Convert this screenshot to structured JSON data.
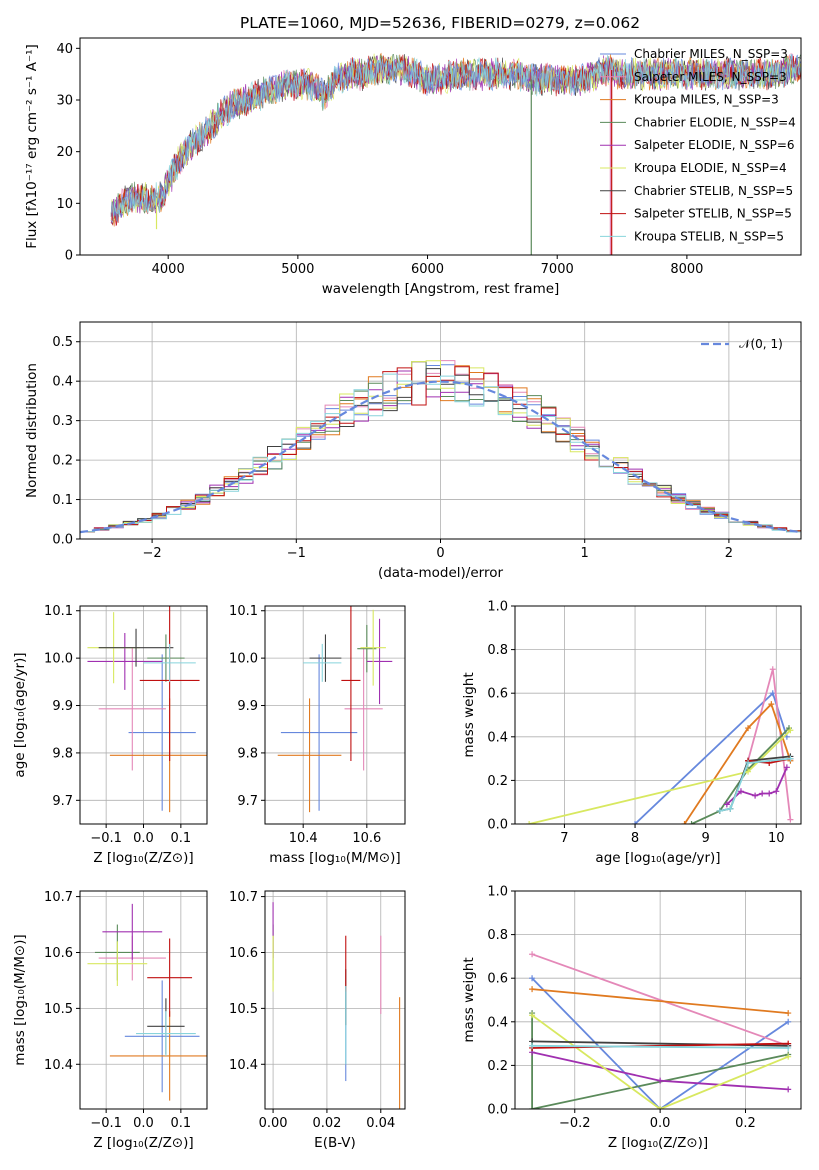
{
  "title": "PLATE=1060, MJD=52636, FIBERID=0279, z=0.062",
  "colors": [
    "#6688dd",
    "#e488b8",
    "#e07a20",
    "#5a8a5a",
    "#a030b0",
    "#d8e860",
    "#404040",
    "#c01010",
    "#88d4dc"
  ],
  "chart_data": [
    {
      "id": "spectrum",
      "type": "line",
      "xlabel": "wavelength [Angstrom, rest frame]",
      "ylabel": "Flux [fλ10⁻¹⁷ erg cm⁻² s⁻¹ A⁻¹]",
      "xlim": [
        3320,
        8880
      ],
      "ylim": [
        0,
        42
      ],
      "xticks": [
        "4000",
        "5000",
        "6000",
        "7000",
        "8000"
      ],
      "yticks": [
        "0",
        "10",
        "20",
        "30",
        "40"
      ],
      "grid": false,
      "legend_position": "top-right",
      "legend": [
        "Chabrier MILES, N_SSP=3",
        "Salpeter MILES, N_SSP=3",
        "Kroupa MILES, N_SSP=3",
        "Chabrier ELODIE, N_SSP=4",
        "Salpeter ELODIE, N_SSP=6",
        "Kroupa ELODIE, N_SSP=4",
        "Chabrier STELIB, N_SSP=5",
        "Salpeter STELIB, N_SSP=5",
        "Kroupa STELIB, N_SSP=5"
      ],
      "continuum": [
        [
          3560,
          8
        ],
        [
          3700,
          11
        ],
        [
          3800,
          11
        ],
        [
          3900,
          11
        ],
        [
          3950,
          11
        ],
        [
          4000,
          14
        ],
        [
          4100,
          19
        ],
        [
          4200,
          22
        ],
        [
          4300,
          24
        ],
        [
          4400,
          27
        ],
        [
          4500,
          29
        ],
        [
          4600,
          30
        ],
        [
          4700,
          31
        ],
        [
          4800,
          32
        ],
        [
          4900,
          33
        ],
        [
          5000,
          33
        ],
        [
          5100,
          33
        ],
        [
          5200,
          31
        ],
        [
          5300,
          34
        ],
        [
          5400,
          35
        ],
        [
          5500,
          35
        ],
        [
          5600,
          36
        ],
        [
          5700,
          36
        ],
        [
          5800,
          36
        ],
        [
          5900,
          35
        ],
        [
          6000,
          34
        ],
        [
          6100,
          34
        ],
        [
          6200,
          35
        ],
        [
          6300,
          35
        ],
        [
          6400,
          35
        ],
        [
          6500,
          35
        ],
        [
          6600,
          35
        ],
        [
          6700,
          35
        ],
        [
          6800,
          34
        ],
        [
          6900,
          34
        ],
        [
          7000,
          34
        ],
        [
          7100,
          34
        ],
        [
          7200,
          34
        ],
        [
          7300,
          35
        ],
        [
          7400,
          36
        ],
        [
          7500,
          35
        ],
        [
          7600,
          35
        ],
        [
          7700,
          35
        ],
        [
          7800,
          35
        ],
        [
          7900,
          35
        ],
        [
          8000,
          35
        ],
        [
          8100,
          35
        ],
        [
          8200,
          35
        ],
        [
          8300,
          35
        ],
        [
          8400,
          35
        ],
        [
          8500,
          35
        ],
        [
          8600,
          35
        ],
        [
          8700,
          35
        ],
        [
          8800,
          36
        ]
      ]
    },
    {
      "id": "residuals",
      "type": "bar",
      "xlabel": "(data-model)/error",
      "ylabel": "Normed distribution",
      "xlim": [
        -2.5,
        2.5
      ],
      "ylim": [
        0,
        0.55
      ],
      "xticks": [
        "−2",
        "−1",
        "0",
        "1",
        "2"
      ],
      "yticks": [
        "0.0",
        "0.1",
        "0.2",
        "0.3",
        "0.4",
        "0.5"
      ],
      "grid": true,
      "legend_position": "top-right",
      "legend": [
        "𝒩(0, 1)"
      ],
      "bin_width": 0.1
    },
    {
      "id": "age-vs-Z",
      "type": "scatter",
      "xlabel": "Z [log₁₀(Z/Z⊙)]",
      "ylabel": "age  [log₁₀(age/yr)]",
      "xlim": [
        -0.17,
        0.17
      ],
      "ylim": [
        9.65,
        10.11
      ],
      "xticks": [
        "−0.1",
        "0.0",
        "0.1"
      ],
      "yticks": [
        "9.7",
        "9.8",
        "9.9",
        "10.0",
        "10.1"
      ],
      "grid": true,
      "points": [
        {
          "x": 0.05,
          "y": 9.843,
          "xerr": 0.09,
          "yerr": 0.165,
          "color": "#6688dd"
        },
        {
          "x": -0.03,
          "y": 9.893,
          "xerr": 0.09,
          "yerr": 0.13,
          "color": "#e488b8"
        },
        {
          "x": 0.07,
          "y": 9.795,
          "xerr": 0.16,
          "yerr": 0.12,
          "color": "#e07a20"
        },
        {
          "x": 0.06,
          "y": 10.0,
          "xerr": 0.05,
          "yerr": 0.05,
          "color": "#5a8a5a"
        },
        {
          "x": -0.05,
          "y": 9.993,
          "xerr": 0.1,
          "yerr": 0.06,
          "color": "#a030b0"
        },
        {
          "x": -0.08,
          "y": 10.022,
          "xerr": 0.07,
          "yerr": 0.075,
          "color": "#d8e860"
        },
        {
          "x": -0.02,
          "y": 10.022,
          "xerr": 0.1,
          "yerr": 0.04,
          "color": "#404040"
        },
        {
          "x": 0.07,
          "y": 9.953,
          "xerr": 0.08,
          "yerr": 0.17,
          "color": "#c01010"
        },
        {
          "x": 0.07,
          "y": 9.99,
          "xerr": 0.07,
          "yerr": 0.04,
          "color": "#88d4dc"
        }
      ]
    },
    {
      "id": "age-vs-mass",
      "type": "scatter",
      "xlabel": "mass [log₁₀(M/M⊙)]",
      "ylabel": "",
      "xlim": [
        10.28,
        10.72
      ],
      "ylim": [
        9.65,
        10.11
      ],
      "xticks": [
        "10.4",
        "10.6"
      ],
      "yticks": [
        "9.7",
        "9.8",
        "9.9",
        "10.0",
        "10.1"
      ],
      "grid": true,
      "points": [
        {
          "x": 10.45,
          "y": 9.843,
          "xerr": 0.12,
          "yerr": 0.165,
          "color": "#6688dd"
        },
        {
          "x": 10.59,
          "y": 9.893,
          "xerr": 0.06,
          "yerr": 0.13,
          "color": "#e488b8"
        },
        {
          "x": 10.42,
          "y": 9.795,
          "xerr": 0.1,
          "yerr": 0.12,
          "color": "#e07a20"
        },
        {
          "x": 10.6,
          "y": 10.02,
          "xerr": 0.03,
          "yerr": 0.05,
          "color": "#5a8a5a"
        },
        {
          "x": 10.64,
          "y": 9.993,
          "xerr": 0.04,
          "yerr": 0.09,
          "color": "#a030b0"
        },
        {
          "x": 10.62,
          "y": 10.022,
          "xerr": 0.04,
          "yerr": 0.08,
          "color": "#d8e860"
        },
        {
          "x": 10.47,
          "y": 10.0,
          "xerr": 0.05,
          "yerr": 0.05,
          "color": "#404040"
        },
        {
          "x": 10.55,
          "y": 9.953,
          "xerr": 0.03,
          "yerr": 0.17,
          "color": "#c01010"
        },
        {
          "x": 10.46,
          "y": 9.99,
          "xerr": 0.06,
          "yerr": 0.04,
          "color": "#88d4dc"
        }
      ]
    },
    {
      "id": "weight-vs-age",
      "type": "line",
      "xlabel": "age  [log₁₀(age/yr)]",
      "ylabel": "mass weight",
      "xlim": [
        6.3,
        10.35
      ],
      "ylim": [
        0,
        1
      ],
      "xticks": [
        "7",
        "8",
        "9",
        "10"
      ],
      "yticks": [
        "0.0",
        "0.2",
        "0.4",
        "0.6",
        "0.8",
        "1.0"
      ],
      "grid": true,
      "series": [
        {
          "color": "#6688dd",
          "x": [
            8.0,
            9.95,
            10.15
          ],
          "y": [
            0.0,
            0.6,
            0.4
          ]
        },
        {
          "color": "#e488b8",
          "x": [
            9.6,
            9.95,
            10.2
          ],
          "y": [
            0.29,
            0.71,
            0.02
          ]
        },
        {
          "color": "#e07a20",
          "x": [
            8.7,
            9.6,
            9.93,
            10.2
          ],
          "y": [
            0.0,
            0.44,
            0.55,
            0.29
          ]
        },
        {
          "color": "#5a8a5a",
          "x": [
            8.8,
            9.2,
            9.6,
            10.18
          ],
          "y": [
            0.0,
            0.06,
            0.25,
            0.44
          ]
        },
        {
          "color": "#a030b0",
          "x": [
            9.3,
            9.5,
            9.7,
            9.8,
            9.9,
            10.0,
            10.15
          ],
          "y": [
            0.09,
            0.15,
            0.13,
            0.14,
            0.14,
            0.15,
            0.26
          ]
        },
        {
          "color": "#d8e860",
          "x": [
            6.5,
            9.6,
            10.2
          ],
          "y": [
            0.0,
            0.24,
            0.43
          ]
        },
        {
          "color": "#404040",
          "x": [
            9.2,
            9.35,
            9.6,
            10.2
          ],
          "y": [
            0.06,
            0.07,
            0.29,
            0.31
          ]
        },
        {
          "color": "#c01010",
          "x": [
            9.6,
            9.9,
            10.2
          ],
          "y": [
            0.29,
            0.28,
            0.3
          ]
        },
        {
          "color": "#88d4dc",
          "x": [
            9.2,
            9.35,
            9.6,
            10.2
          ],
          "y": [
            0.06,
            0.07,
            0.28,
            0.3
          ]
        }
      ]
    },
    {
      "id": "mass-vs-Z",
      "type": "scatter",
      "xlabel": "Z [log₁₀(Z/Z⊙)]",
      "ylabel": "mass [log₁₀(M/M⊙)]",
      "xlim": [
        -0.17,
        0.17
      ],
      "ylim": [
        10.32,
        10.71
      ],
      "xticks": [
        "−0.1",
        "0.0",
        "0.1"
      ],
      "yticks": [
        "10.4",
        "10.5",
        "10.6",
        "10.7"
      ],
      "grid": true,
      "points": [
        {
          "x": 0.05,
          "y": 10.45,
          "xerr": 0.1,
          "yerr": 0.1,
          "color": "#6688dd"
        },
        {
          "x": -0.03,
          "y": 10.59,
          "xerr": 0.09,
          "yerr": 0.04,
          "color": "#e488b8"
        },
        {
          "x": 0.07,
          "y": 10.415,
          "xerr": 0.16,
          "yerr": 0.08,
          "color": "#e07a20"
        },
        {
          "x": -0.07,
          "y": 10.6,
          "xerr": 0.06,
          "yerr": 0.05,
          "color": "#5a8a5a"
        },
        {
          "x": -0.03,
          "y": 10.637,
          "xerr": 0.08,
          "yerr": 0.05,
          "color": "#a030b0"
        },
        {
          "x": -0.07,
          "y": 10.58,
          "xerr": 0.08,
          "yerr": 0.04,
          "color": "#d8e860"
        },
        {
          "x": 0.06,
          "y": 10.468,
          "xerr": 0.05,
          "yerr": 0.05,
          "color": "#404040"
        },
        {
          "x": 0.07,
          "y": 10.555,
          "xerr": 0.06,
          "yerr": 0.07,
          "color": "#c01010"
        },
        {
          "x": 0.06,
          "y": 10.455,
          "xerr": 0.08,
          "yerr": 0.04,
          "color": "#88d4dc"
        }
      ]
    },
    {
      "id": "mass-vs-EBV",
      "type": "scatter",
      "xlabel": "E(B-V)",
      "ylabel": "",
      "xlim": [
        -0.003,
        0.049
      ],
      "ylim": [
        10.32,
        10.71
      ],
      "xticks": [
        "0.00",
        "0.02",
        "0.04"
      ],
      "yticks": [
        "10.4",
        "10.5",
        "10.6",
        "10.7"
      ],
      "grid": true,
      "points": [
        {
          "x": 0.027,
          "y": 10.45,
          "xerr": 0,
          "yerr": 0.08,
          "color": "#6688dd"
        },
        {
          "x": 0.04,
          "y": 10.56,
          "xerr": 0,
          "yerr": 0.07,
          "color": "#e488b8"
        },
        {
          "x": 0.047,
          "y": 10.42,
          "xerr": 0,
          "yerr": 0.1,
          "color": "#e07a20"
        },
        {
          "x": 0.0,
          "y": 10.6,
          "xerr": 0,
          "yerr": 0.05,
          "color": "#5a8a5a"
        },
        {
          "x": 0.0,
          "y": 10.64,
          "xerr": 0,
          "yerr": 0.05,
          "color": "#a030b0"
        },
        {
          "x": 0.0,
          "y": 10.58,
          "xerr": 0,
          "yerr": 0.05,
          "color": "#d8e860"
        },
        {
          "x": 0.027,
          "y": 10.52,
          "xerr": 0,
          "yerr": 0.05,
          "color": "#404040"
        },
        {
          "x": 0.027,
          "y": 10.58,
          "xerr": 0,
          "yerr": 0.05,
          "color": "#c01010"
        },
        {
          "x": 0.027,
          "y": 10.47,
          "xerr": 0,
          "yerr": 0.07,
          "color": "#88d4dc"
        }
      ]
    },
    {
      "id": "weight-vs-Z",
      "type": "line",
      "xlabel": "Z [log₁₀(Z/Z⊙)]",
      "ylabel": "mass weight",
      "xlim": [
        -0.34,
        0.33
      ],
      "ylim": [
        0,
        1
      ],
      "xticks": [
        "−0.2",
        "0.0",
        "0.2"
      ],
      "yticks": [
        "0.0",
        "0.2",
        "0.4",
        "0.6",
        "0.8",
        "1.0"
      ],
      "grid": true,
      "series": [
        {
          "color": "#6688dd",
          "x": [
            -0.3,
            0.0,
            0.3
          ],
          "y": [
            0.6,
            0.0,
            0.4
          ]
        },
        {
          "color": "#e488b8",
          "x": [
            -0.3,
            0.3
          ],
          "y": [
            0.71,
            0.29
          ]
        },
        {
          "color": "#e07a20",
          "x": [
            -0.3,
            0.3
          ],
          "y": [
            0.55,
            0.44
          ]
        },
        {
          "color": "#5a8a5a",
          "x": [
            -0.3,
            -0.3,
            0.3
          ],
          "y": [
            0.44,
            0.0,
            0.25
          ]
        },
        {
          "color": "#a030b0",
          "x": [
            -0.3,
            0.0,
            0.3
          ],
          "y": [
            0.26,
            0.13,
            0.09
          ]
        },
        {
          "color": "#d8e860",
          "x": [
            -0.3,
            0.0,
            0.3
          ],
          "y": [
            0.43,
            0.0,
            0.24
          ]
        },
        {
          "color": "#404040",
          "x": [
            -0.3,
            0.3
          ],
          "y": [
            0.31,
            0.29
          ]
        },
        {
          "color": "#c01010",
          "x": [
            -0.3,
            0.3
          ],
          "y": [
            0.28,
            0.3
          ]
        },
        {
          "color": "#88d4dc",
          "x": [
            -0.3,
            0.3
          ],
          "y": [
            0.29,
            0.28
          ]
        }
      ]
    }
  ]
}
